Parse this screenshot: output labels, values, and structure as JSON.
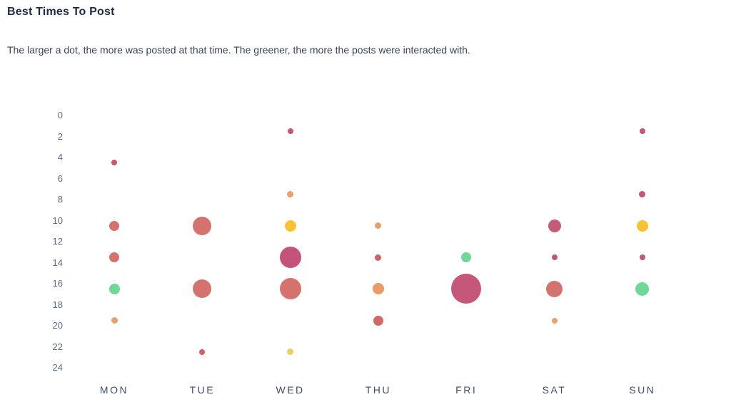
{
  "header": {
    "title": "Best Times To Post",
    "subtitle": "The larger a dot, the more was posted at that time. The greener, the more the posts were interacted with."
  },
  "legend_semantics": {
    "size_meaning": "amount posted at that time",
    "color_meaning": "greener = more interaction",
    "palette": {
      "high_interaction_green": "#6fd897",
      "medium_yellow": "#f7c32e",
      "medium_orange": "#e9a06b",
      "low_salmon": "#d4736d",
      "lowest_crimson": "#c5527a"
    }
  },
  "chart_data": {
    "type": "scatter",
    "title": "Best Times To Post",
    "x_categories": [
      "MON",
      "TUE",
      "WED",
      "THU",
      "FRI",
      "SAT",
      "SUN"
    ],
    "y_axis": {
      "tick_values": [
        0,
        2,
        4,
        6,
        8,
        10,
        12,
        14,
        16,
        18,
        20,
        22,
        24
      ],
      "min": 0,
      "max": 24,
      "grid": false
    },
    "points": [
      {
        "day": "MON",
        "hour": 4.5,
        "radius": 4,
        "color": "#c9566f"
      },
      {
        "day": "MON",
        "hour": 10.5,
        "radius": 7,
        "color": "#d4736d"
      },
      {
        "day": "MON",
        "hour": 13.5,
        "radius": 7,
        "color": "#d4736d"
      },
      {
        "day": "MON",
        "hour": 16.5,
        "radius": 7.5,
        "color": "#6fd897"
      },
      {
        "day": "MON",
        "hour": 19.5,
        "radius": 4.5,
        "color": "#e9a06b"
      },
      {
        "day": "TUE",
        "hour": 10.5,
        "radius": 13,
        "color": "#d4736d"
      },
      {
        "day": "TUE",
        "hour": 16.5,
        "radius": 13,
        "color": "#d4736d"
      },
      {
        "day": "TUE",
        "hour": 22.5,
        "radius": 4,
        "color": "#d16162"
      },
      {
        "day": "WED",
        "hour": 1.5,
        "radius": 4,
        "color": "#c25578"
      },
      {
        "day": "WED",
        "hour": 7.5,
        "radius": 4.5,
        "color": "#e9a06b"
      },
      {
        "day": "WED",
        "hour": 10.5,
        "radius": 8,
        "color": "#f7c32e"
      },
      {
        "day": "WED",
        "hour": 13.5,
        "radius": 15,
        "color": "#c5527a"
      },
      {
        "day": "WED",
        "hour": 16.5,
        "radius": 15,
        "color": "#d4736d"
      },
      {
        "day": "WED",
        "hour": 22.5,
        "radius": 4.5,
        "color": "#e8d060"
      },
      {
        "day": "THU",
        "hour": 10.5,
        "radius": 4.5,
        "color": "#e9a06b"
      },
      {
        "day": "THU",
        "hour": 13.5,
        "radius": 4.5,
        "color": "#d16162"
      },
      {
        "day": "THU",
        "hour": 16.5,
        "radius": 8,
        "color": "#e99c64"
      },
      {
        "day": "THU",
        "hour": 19.5,
        "radius": 7,
        "color": "#d06a66"
      },
      {
        "day": "FRI",
        "hour": 13.5,
        "radius": 7,
        "color": "#6fd897"
      },
      {
        "day": "FRI",
        "hour": 16.5,
        "radius": 21,
        "color": "#c5577a"
      },
      {
        "day": "SAT",
        "hour": 10.5,
        "radius": 9,
        "color": "#c25c78"
      },
      {
        "day": "SAT",
        "hour": 13.5,
        "radius": 4,
        "color": "#c25578"
      },
      {
        "day": "SAT",
        "hour": 16.5,
        "radius": 11.5,
        "color": "#d4736d"
      },
      {
        "day": "SAT",
        "hour": 19.5,
        "radius": 4,
        "color": "#e9a06b"
      },
      {
        "day": "SUN",
        "hour": 1.5,
        "radius": 4,
        "color": "#c25578"
      },
      {
        "day": "SUN",
        "hour": 7.5,
        "radius": 4.5,
        "color": "#c25578"
      },
      {
        "day": "SUN",
        "hour": 10.5,
        "radius": 8,
        "color": "#f6c333"
      },
      {
        "day": "SUN",
        "hour": 13.5,
        "radius": 4,
        "color": "#c25578"
      },
      {
        "day": "SUN",
        "hour": 16.5,
        "radius": 9.5,
        "color": "#6fd897"
      }
    ]
  }
}
